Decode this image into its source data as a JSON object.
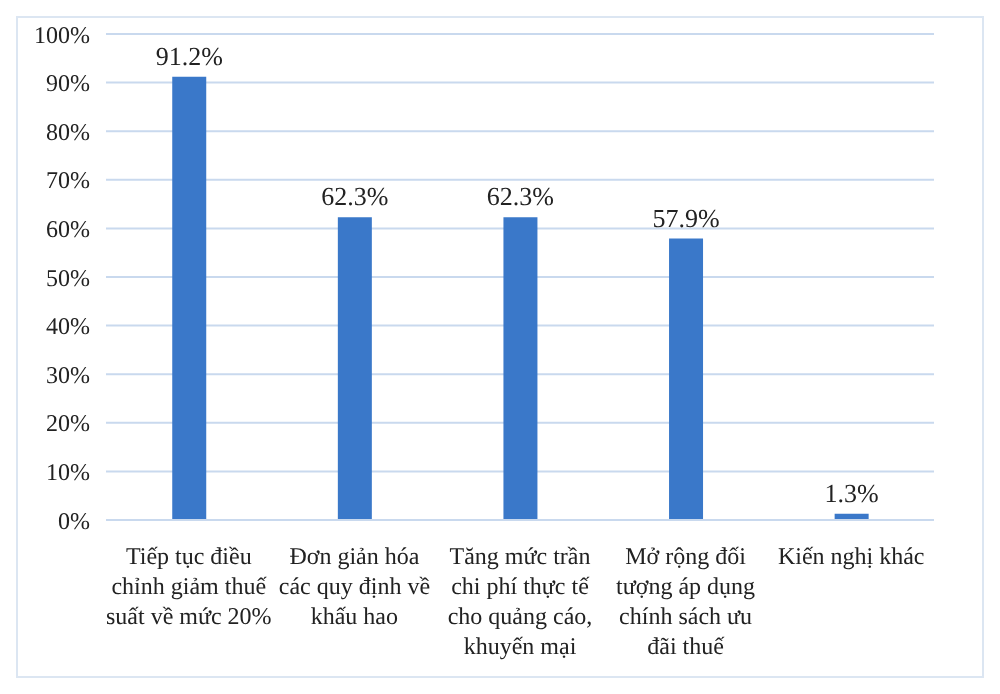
{
  "chart_data": {
    "type": "bar",
    "categories": [
      "Tiếp tục điều chỉnh giảm thuế suất về mức 20%",
      "Đơn giản hóa các quy định về khấu hao",
      "Tăng mức trần chi phí thực tế cho quảng cáo, khuyến mại",
      "Mở rộng đối tượng áp dụng chính sách ưu đãi thuế",
      "Kiến nghị khác"
    ],
    "values": [
      91.2,
      62.3,
      62.3,
      57.9,
      1.3
    ],
    "value_labels": [
      "91.2%",
      "62.3%",
      "62.3%",
      "57.9%",
      "1.3%"
    ],
    "color": "#3a78c9",
    "ylim": [
      0,
      100
    ],
    "yticks": [
      {
        "value": 0,
        "label": "0%"
      },
      {
        "value": 10,
        "label": "10%"
      },
      {
        "value": 20,
        "label": "20%"
      },
      {
        "value": 30,
        "label": "30%"
      },
      {
        "value": 40,
        "label": "40%"
      },
      {
        "value": 50,
        "label": "50%"
      },
      {
        "value": 60,
        "label": "60%"
      },
      {
        "value": 70,
        "label": "70%"
      },
      {
        "value": 80,
        "label": "80%"
      },
      {
        "value": 90,
        "label": "90%"
      },
      {
        "value": 100,
        "label": "100%"
      }
    ],
    "grid": "y"
  }
}
